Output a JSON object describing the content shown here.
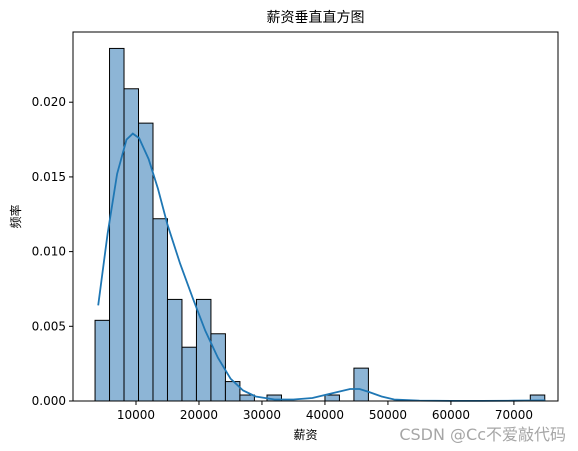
{
  "chart_data": {
    "type": "bar",
    "title": "薪资垂直直方图",
    "xlabel": "薪资",
    "ylabel": "频率",
    "xlim": [
      0,
      77000
    ],
    "ylim": [
      0,
      0.0247
    ],
    "xticks": [
      10000,
      20000,
      30000,
      40000,
      50000,
      60000,
      70000
    ],
    "xtick_labels": [
      "10000",
      "20000",
      "30000",
      "40000",
      "50000",
      "60000",
      "70000"
    ],
    "yticks": [
      0,
      0.005,
      0.01,
      0.015,
      0.02
    ],
    "ytick_labels": [
      "0.000",
      "0.005",
      "0.010",
      "0.015",
      "0.020"
    ],
    "grid": false,
    "bin_width": 2300,
    "bins": [
      {
        "x0": 3500,
        "x1": 5800,
        "value": 0.0054
      },
      {
        "x0": 5800,
        "x1": 8100,
        "value": 0.0236
      },
      {
        "x0": 8100,
        "x1": 10400,
        "value": 0.0209
      },
      {
        "x0": 10400,
        "x1": 12700,
        "value": 0.0186
      },
      {
        "x0": 12700,
        "x1": 15000,
        "value": 0.0122
      },
      {
        "x0": 15000,
        "x1": 17300,
        "value": 0.0068
      },
      {
        "x0": 17300,
        "x1": 19600,
        "value": 0.0036
      },
      {
        "x0": 19600,
        "x1": 21900,
        "value": 0.0068
      },
      {
        "x0": 21900,
        "x1": 24200,
        "value": 0.0045
      },
      {
        "x0": 24200,
        "x1": 26500,
        "value": 0.0013
      },
      {
        "x0": 26500,
        "x1": 28800,
        "value": 0.0004
      },
      {
        "x0": 30800,
        "x1": 33100,
        "value": 0.0004
      },
      {
        "x0": 40000,
        "x1": 42300,
        "value": 0.0004
      },
      {
        "x0": 44600,
        "x1": 46900,
        "value": 0.0022
      },
      {
        "x0": 72600,
        "x1": 74900,
        "value": 0.0004
      }
    ],
    "kde": {
      "x": [
        4000,
        5500,
        7000,
        8500,
        9500,
        10500,
        12000,
        13500,
        15000,
        17000,
        19000,
        21000,
        23000,
        25000,
        27000,
        29000,
        32000,
        35000,
        38000,
        40000,
        42000,
        44000,
        45500,
        47000,
        49000,
        51000,
        55000,
        60000,
        65000,
        70000,
        75000
      ],
      "y": [
        0.0064,
        0.0112,
        0.0152,
        0.0175,
        0.0179,
        0.0176,
        0.0162,
        0.0142,
        0.0118,
        0.0092,
        0.0069,
        0.0047,
        0.0029,
        0.0015,
        0.0007,
        0.0003,
        0.0001,
        0.0001,
        0.0002,
        0.0004,
        0.0006,
        0.0008,
        0.0008,
        0.0006,
        0.0003,
        0.0001,
        3e-05,
        1e-05,
        1e-05,
        2e-05,
        4e-05
      ]
    },
    "colors": {
      "bar_fill": "#8db5d6",
      "bar_edge": "#000000",
      "kde_line": "#1f77b4"
    }
  },
  "watermark": "CSDN @Cc不爱敲代码"
}
